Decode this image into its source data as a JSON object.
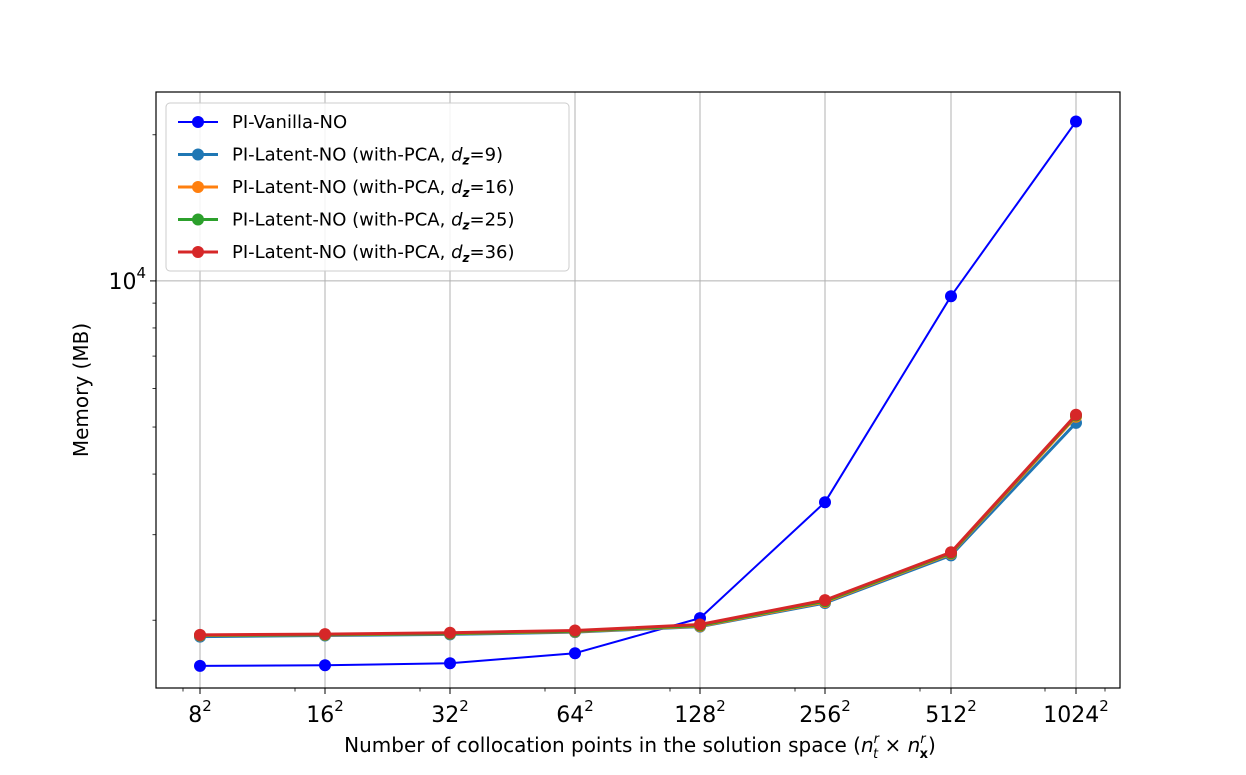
{
  "chart_data": {
    "type": "line",
    "title": "",
    "xlabel": "Number of collocation points in the solution space",
    "xlabel_math": {
      "open": "(",
      "t_symbol": "n",
      "t_sup": "r",
      "t_sub": "t",
      "times": " × ",
      "x_symbol": "n",
      "x_sup": "r",
      "x_sub": "x",
      "close": ")"
    },
    "ylabel": "Memory (MB)",
    "yscale": "log",
    "ylim": [
      1450,
      24500
    ],
    "categories": [
      {
        "base": "8",
        "exp": "2"
      },
      {
        "base": "16",
        "exp": "2"
      },
      {
        "base": "32",
        "exp": "2"
      },
      {
        "base": "64",
        "exp": "2"
      },
      {
        "base": "128",
        "exp": "2"
      },
      {
        "base": "256",
        "exp": "2"
      },
      {
        "base": "512",
        "exp": "2"
      },
      {
        "base": "1024",
        "exp": "2"
      }
    ],
    "y_major_tick": {
      "base": "10",
      "exp": "4",
      "value": 10000
    },
    "grid": true,
    "legend_position": "upper-left",
    "series": [
      {
        "name": "PI-Vanilla-NO",
        "color": "#0000ff",
        "values": [
          1610,
          1615,
          1630,
          1710,
          2020,
          3500,
          9300,
          21300
        ]
      },
      {
        "name_prefix": "PI-Latent-NO (with-PCA, ",
        "name_symbol": "d",
        "name_sub": "z",
        "name_suffix": "=9)",
        "color": "#1f77b4",
        "values": [
          1850,
          1860,
          1870,
          1890,
          1940,
          2170,
          2720,
          5100
        ]
      },
      {
        "name_prefix": "PI-Latent-NO (with-PCA, ",
        "name_symbol": "d",
        "name_sub": "z",
        "name_suffix": "=16)",
        "color": "#ff7f0e",
        "values": [
          1860,
          1865,
          1875,
          1895,
          1945,
          2180,
          2740,
          5250
        ]
      },
      {
        "name_prefix": "PI-Latent-NO (with-PCA, ",
        "name_symbol": "d",
        "name_sub": "z",
        "name_suffix": "=25)",
        "color": "#2ca02c",
        "values": [
          1862,
          1868,
          1878,
          1898,
          1950,
          2190,
          2750,
          5280
        ]
      },
      {
        "name_prefix": "PI-Latent-NO (with-PCA, ",
        "name_symbol": "d",
        "name_sub": "z",
        "name_suffix": "=36)",
        "color": "#d62728",
        "values": [
          1865,
          1872,
          1885,
          1905,
          1960,
          2200,
          2760,
          5300
        ]
      }
    ]
  }
}
